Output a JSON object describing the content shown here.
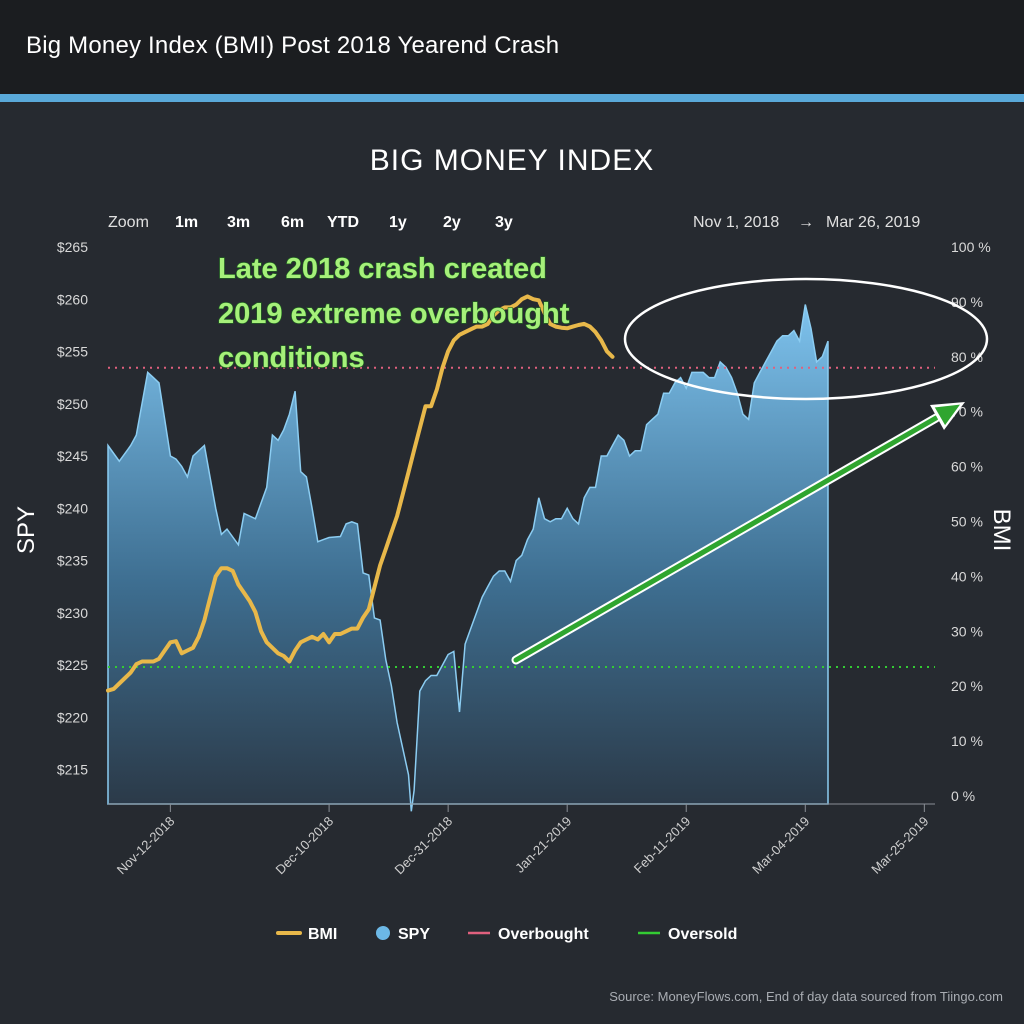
{
  "header": {
    "title": "Big Money Index (BMI) Post 2018 Yearend Crash"
  },
  "chart_data": {
    "type": "area",
    "title": "BIG MONEY INDEX",
    "ylabel_left": "SPY",
    "ylabel_right": "BMI",
    "left_axis": {
      "ticks": [
        "$215",
        "$220",
        "$225",
        "$230",
        "$235",
        "$240",
        "$245",
        "$250",
        "$255",
        "$260",
        "$265"
      ],
      "range": [
        211,
        265
      ]
    },
    "right_axis": {
      "ticks": [
        "0 %",
        "10 %",
        "20 %",
        "30 %",
        "40 %",
        "50 %",
        "60 %",
        "70 %",
        "80 %",
        "90 %",
        "100 %"
      ],
      "range": [
        0,
        100
      ]
    },
    "x_ticks": [
      "Nov-12-2018",
      "Dec-10-2018",
      "Dec-31-2018",
      "Jan-21-2019",
      "Feb-11-2019",
      "Mar-04-2019",
      "Mar-25-2019"
    ],
    "x_range": [
      0,
      145
    ],
    "x_tick_positions": [
      11,
      39,
      60,
      81,
      102,
      123,
      144
    ],
    "zoom": {
      "label": "Zoom",
      "buttons": [
        "1m",
        "3m",
        "6m",
        "YTD",
        "1y",
        "2y",
        "3y"
      ]
    },
    "date_range": {
      "from": "Nov 1, 2018",
      "arrow": "→",
      "to": "Mar 26, 2019"
    },
    "series": [
      {
        "name": "SPY",
        "color": "#6cb8e6",
        "points": [
          [
            0,
            246
          ],
          [
            2,
            244.5
          ],
          [
            4,
            246
          ],
          [
            5,
            247
          ],
          [
            6,
            250
          ],
          [
            7,
            253
          ],
          [
            8,
            252.5
          ],
          [
            9,
            252
          ],
          [
            10,
            248.5
          ],
          [
            11,
            245
          ],
          [
            12,
            244.7
          ],
          [
            13,
            244
          ],
          [
            14,
            243
          ],
          [
            15,
            245
          ],
          [
            17,
            246
          ],
          [
            18,
            243
          ],
          [
            19,
            240
          ],
          [
            20,
            237.5
          ],
          [
            21,
            238
          ],
          [
            23,
            236.5
          ],
          [
            24,
            239.5
          ],
          [
            26,
            239
          ],
          [
            28,
            242
          ],
          [
            29,
            247
          ],
          [
            30,
            246.5
          ],
          [
            31,
            247.5
          ],
          [
            32,
            249
          ],
          [
            33,
            251.2
          ],
          [
            34,
            243.5
          ],
          [
            35,
            243
          ],
          [
            36,
            240
          ],
          [
            37,
            236.8
          ],
          [
            38,
            237
          ],
          [
            39,
            237.2
          ],
          [
            41,
            237.3
          ],
          [
            42,
            238.5
          ],
          [
            43,
            238.7
          ],
          [
            44,
            238.5
          ],
          [
            45,
            233.8
          ],
          [
            46,
            233.6
          ],
          [
            47,
            229.5
          ],
          [
            48,
            229.3
          ],
          [
            49,
            225.5
          ],
          [
            50,
            223
          ],
          [
            51,
            219.5
          ],
          [
            52,
            217
          ],
          [
            53,
            214.5
          ],
          [
            53.5,
            211
          ],
          [
            54,
            213
          ],
          [
            55,
            222.5
          ],
          [
            56,
            223.5
          ],
          [
            57,
            224
          ],
          [
            58,
            224
          ],
          [
            59,
            225
          ],
          [
            60,
            226
          ],
          [
            61,
            226.3
          ],
          [
            62,
            220.5
          ],
          [
            63,
            227
          ],
          [
            64,
            228.5
          ],
          [
            65,
            230
          ],
          [
            66,
            231.5
          ],
          [
            67,
            232.5
          ],
          [
            68,
            233.5
          ],
          [
            69,
            234
          ],
          [
            70,
            234
          ],
          [
            71,
            233
          ],
          [
            72,
            235
          ],
          [
            73,
            235.5
          ],
          [
            74,
            237
          ],
          [
            75,
            238
          ],
          [
            76,
            241
          ],
          [
            77,
            239
          ],
          [
            78,
            238.7
          ],
          [
            79,
            239
          ],
          [
            80,
            239
          ],
          [
            81,
            240
          ],
          [
            82,
            239
          ],
          [
            83,
            238.5
          ],
          [
            84,
            241
          ],
          [
            85,
            242
          ],
          [
            86,
            242
          ],
          [
            87,
            245
          ],
          [
            88,
            245
          ],
          [
            89,
            246
          ],
          [
            90,
            247
          ],
          [
            91,
            246.5
          ],
          [
            92,
            245
          ],
          [
            93,
            245.5
          ],
          [
            94,
            245.5
          ],
          [
            95,
            248
          ],
          [
            96,
            248.5
          ],
          [
            97,
            249
          ],
          [
            98,
            251
          ],
          [
            99,
            251
          ],
          [
            100,
            252
          ],
          [
            101,
            252.5
          ],
          [
            102,
            251.5
          ],
          [
            103,
            253
          ],
          [
            104,
            253
          ],
          [
            105,
            253
          ],
          [
            106,
            252.5
          ],
          [
            107,
            252.5
          ],
          [
            108,
            254
          ],
          [
            109,
            253.5
          ],
          [
            110,
            252.5
          ],
          [
            111,
            251
          ],
          [
            112,
            249
          ],
          [
            113,
            248.5
          ],
          [
            114,
            252
          ],
          [
            115,
            253
          ],
          [
            116,
            254
          ],
          [
            117,
            255
          ],
          [
            118,
            256
          ],
          [
            119,
            256.5
          ],
          [
            120,
            256.5
          ],
          [
            121,
            257
          ],
          [
            122,
            256
          ],
          [
            123,
            259.5
          ],
          [
            124,
            257.2
          ],
          [
            125,
            254
          ],
          [
            126,
            254.5
          ],
          [
            127,
            256
          ]
        ]
      },
      {
        "name": "BMI",
        "color": "#e8b84a",
        "points": [
          [
            0,
            19.2
          ],
          [
            1,
            19.5
          ],
          [
            2,
            20.5
          ],
          [
            3,
            21.5
          ],
          [
            4,
            22.5
          ],
          [
            5,
            24
          ],
          [
            6,
            24.5
          ],
          [
            7,
            24.5
          ],
          [
            8,
            24.5
          ],
          [
            9,
            25
          ],
          [
            10,
            26.5
          ],
          [
            11,
            28
          ],
          [
            12,
            28.2
          ],
          [
            13,
            26
          ],
          [
            14,
            26.5
          ],
          [
            15,
            27
          ],
          [
            16,
            29
          ],
          [
            17,
            32
          ],
          [
            18,
            36
          ],
          [
            19,
            40
          ],
          [
            20,
            41.5
          ],
          [
            21,
            41.5
          ],
          [
            22,
            41
          ],
          [
            23,
            38.5
          ],
          [
            24,
            37
          ],
          [
            25,
            35.5
          ],
          [
            26,
            33.5
          ],
          [
            27,
            30
          ],
          [
            28,
            28
          ],
          [
            29,
            27
          ],
          [
            30,
            26
          ],
          [
            31,
            25.5
          ],
          [
            32,
            24.5
          ],
          [
            33,
            26.5
          ],
          [
            34,
            28
          ],
          [
            35,
            28.5
          ],
          [
            36,
            29
          ],
          [
            37,
            28.5
          ],
          [
            38,
            29.5
          ],
          [
            39,
            28
          ],
          [
            40,
            29.5
          ],
          [
            41,
            29.5
          ],
          [
            42,
            30
          ],
          [
            43,
            30.5
          ],
          [
            44,
            30.5
          ],
          [
            45,
            32.5
          ],
          [
            46,
            34
          ],
          [
            47,
            38
          ],
          [
            48,
            42
          ],
          [
            49,
            45
          ],
          [
            50,
            48
          ],
          [
            51,
            51
          ],
          [
            52,
            55
          ],
          [
            53,
            59
          ],
          [
            54,
            63
          ],
          [
            55,
            67
          ],
          [
            56,
            71
          ],
          [
            57,
            71
          ],
          [
            58,
            74
          ],
          [
            59,
            78
          ],
          [
            60,
            81
          ],
          [
            61,
            83
          ],
          [
            62,
            84
          ],
          [
            63,
            84.5
          ],
          [
            64,
            85
          ],
          [
            65,
            85.5
          ],
          [
            66,
            85.5
          ],
          [
            67,
            86
          ],
          [
            68,
            87.5
          ],
          [
            69,
            88.5
          ],
          [
            70,
            89
          ],
          [
            71,
            89
          ],
          [
            72,
            89.5
          ],
          [
            73,
            90.5
          ],
          [
            74,
            91
          ],
          [
            75,
            90.5
          ],
          [
            76,
            90.3
          ],
          [
            77,
            88
          ],
          [
            78,
            86
          ],
          [
            79,
            85.5
          ],
          [
            80,
            85.3
          ],
          [
            81,
            85.2
          ],
          [
            82,
            85.5
          ],
          [
            83,
            85.8
          ],
          [
            84,
            86
          ],
          [
            85,
            85.5
          ],
          [
            86,
            84.5
          ],
          [
            87,
            83
          ],
          [
            88,
            81
          ],
          [
            89,
            80
          ]
        ]
      },
      {
        "name": "Overbought",
        "color": "#e0607e",
        "value_pct": 78
      },
      {
        "name": "Oversold",
        "color": "#33cc33",
        "value_pct": 23.5
      }
    ],
    "annotation": {
      "lines": [
        "Late 2018 crash created",
        "2019 extreme overbought",
        "conditions"
      ],
      "color": "#a6f07a"
    },
    "arrow_color": "#2fa52f",
    "ellipse_color": "#ffffff",
    "legend": {
      "placement": "bottom-center"
    }
  },
  "footer": {
    "source": "Source: MoneyFlows.com, End of day data sourced from Tiingo.com"
  }
}
